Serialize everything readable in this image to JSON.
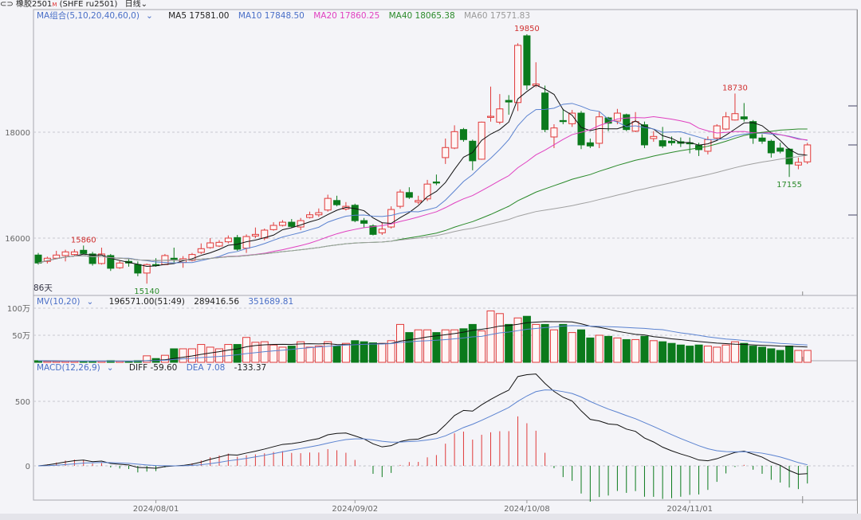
{
  "header": {
    "link_icon": "link-icon",
    "symbol": "橡胶2501",
    "symbol_tag": "M",
    "exchange_code": "(SHFE ru2501)",
    "period": "日线",
    "period_chevron": "chevron-down-icon"
  },
  "ma_legend": {
    "group_label": "MA组合(5,10,20,40,60,0)",
    "ma5": "MA5 17581.00",
    "ma10": "MA10 17848.50",
    "ma20": "MA20 17860.25",
    "ma40": "MA40 18065.38",
    "ma60": "MA60 17571.83"
  },
  "vol_legend": {
    "label": "MV(10,20)",
    "v1": "196571.00(51:49)",
    "v2": "289416.56",
    "v3": "351689.81"
  },
  "macd_legend": {
    "label": "MACD(12,26,9)",
    "diff": "DIFF -59.60",
    "dea": "DEA 7.08",
    "macd": "-133.37"
  },
  "days_label": "86天",
  "colors": {
    "up": "#e03a3a",
    "down": "#0b7a1c",
    "ma5": "#111111",
    "ma10": "#5a82d0",
    "ma20": "#e040c0",
    "ma40": "#2a8a2a",
    "ma60": "#a0a0a0"
  },
  "chart_data": {
    "type": "candlestick",
    "candle_format": [
      "open",
      "high",
      "low",
      "close"
    ],
    "candles": [
      [
        15680,
        15720,
        15500,
        15530
      ],
      [
        15560,
        15650,
        15520,
        15620
      ],
      [
        15620,
        15760,
        15600,
        15680
      ],
      [
        15670,
        15780,
        15560,
        15740
      ],
      [
        15690,
        15790,
        15660,
        15740
      ],
      [
        15770,
        15860,
        15700,
        15710
      ],
      [
        15700,
        15740,
        15480,
        15520
      ],
      [
        15520,
        15820,
        15500,
        15700
      ],
      [
        15670,
        15700,
        15380,
        15430
      ],
      [
        15440,
        15580,
        15420,
        15530
      ],
      [
        15560,
        15600,
        15460,
        15530
      ],
      [
        15500,
        15560,
        15280,
        15340
      ],
      [
        15340,
        15520,
        15140,
        15500
      ],
      [
        15500,
        15620,
        15460,
        15480
      ],
      [
        15500,
        15700,
        15490,
        15670
      ],
      [
        15620,
        15820,
        15540,
        15600
      ],
      [
        15540,
        15660,
        15440,
        15610
      ],
      [
        15580,
        15720,
        15560,
        15690
      ],
      [
        15730,
        15900,
        15700,
        15800
      ],
      [
        15820,
        16000,
        15800,
        15910
      ],
      [
        15850,
        15960,
        15830,
        15920
      ],
      [
        15930,
        16050,
        15900,
        16000
      ],
      [
        16010,
        16060,
        15760,
        15790
      ],
      [
        15810,
        16070,
        15720,
        16030
      ],
      [
        16040,
        16200,
        16000,
        16070
      ],
      [
        16000,
        16180,
        15960,
        16150
      ],
      [
        16160,
        16300,
        16140,
        16240
      ],
      [
        16240,
        16340,
        16220,
        16300
      ],
      [
        16300,
        16360,
        16200,
        16220
      ],
      [
        16210,
        16380,
        16150,
        16330
      ],
      [
        16390,
        16500,
        16370,
        16440
      ],
      [
        16440,
        16560,
        16400,
        16480
      ],
      [
        16530,
        16820,
        16500,
        16750
      ],
      [
        16710,
        16800,
        16600,
        16630
      ],
      [
        16550,
        16680,
        16520,
        16600
      ],
      [
        16620,
        16650,
        16300,
        16330
      ],
      [
        16330,
        16380,
        16200,
        16280
      ],
      [
        16230,
        16260,
        16050,
        16070
      ],
      [
        16100,
        16300,
        16060,
        16170
      ],
      [
        16210,
        16600,
        16180,
        16540
      ],
      [
        16600,
        16920,
        16560,
        16870
      ],
      [
        16860,
        16960,
        16740,
        16770
      ],
      [
        16680,
        16800,
        16640,
        16710
      ],
      [
        16740,
        17100,
        16700,
        17020
      ],
      [
        17060,
        17200,
        17000,
        17040
      ],
      [
        17520,
        17880,
        17400,
        17710
      ],
      [
        17700,
        18130,
        17680,
        18010
      ],
      [
        18050,
        18080,
        17820,
        17860
      ],
      [
        17830,
        17860,
        17280,
        17460
      ],
      [
        17490,
        18200,
        17480,
        18190
      ],
      [
        18280,
        18860,
        18200,
        18300
      ],
      [
        18190,
        18720,
        18150,
        18440
      ],
      [
        18600,
        18700,
        18330,
        18570
      ],
      [
        18560,
        19680,
        18400,
        19640
      ],
      [
        19820,
        19850,
        18800,
        18890
      ],
      [
        18880,
        19320,
        18850,
        18910
      ],
      [
        18740,
        18880,
        18000,
        18050
      ],
      [
        17910,
        18150,
        17700,
        18080
      ],
      [
        18220,
        18440,
        18150,
        18200
      ],
      [
        18160,
        18420,
        18100,
        18360
      ],
      [
        18360,
        18400,
        17680,
        17760
      ],
      [
        17800,
        17880,
        17700,
        17740
      ],
      [
        17790,
        18390,
        17700,
        18290
      ],
      [
        18270,
        18290,
        18020,
        18170
      ],
      [
        18210,
        18440,
        18150,
        18360
      ],
      [
        18330,
        18350,
        18020,
        18050
      ],
      [
        18020,
        18380,
        18000,
        18200
      ],
      [
        18140,
        18200,
        17700,
        17760
      ],
      [
        17880,
        18020,
        17820,
        17920
      ],
      [
        17840,
        18100,
        17700,
        17740
      ],
      [
        17830,
        17920,
        17750,
        17800
      ],
      [
        17820,
        17900,
        17720,
        17790
      ],
      [
        17800,
        17900,
        17600,
        17780
      ],
      [
        17750,
        17800,
        17550,
        17670
      ],
      [
        17640,
        17920,
        17580,
        17860
      ],
      [
        17890,
        18150,
        17850,
        18120
      ],
      [
        18060,
        18380,
        18040,
        18290
      ],
      [
        18230,
        18730,
        18220,
        18350
      ],
      [
        18290,
        18550,
        18200,
        18250
      ],
      [
        18200,
        18230,
        17780,
        17890
      ],
      [
        17890,
        17960,
        17780,
        17830
      ],
      [
        17830,
        17860,
        17520,
        17610
      ],
      [
        17700,
        17800,
        17600,
        17640
      ],
      [
        17680,
        17700,
        17155,
        17400
      ],
      [
        17380,
        17520,
        17300,
        17430
      ],
      [
        17440,
        17800,
        17400,
        17760
      ]
    ],
    "volume_wan": [
      3,
      2,
      2,
      2,
      2,
      2,
      2,
      2,
      3,
      2,
      2,
      3,
      12,
      7,
      13,
      25,
      25,
      25,
      33,
      28,
      25,
      33,
      33,
      46,
      37,
      38,
      32,
      28,
      30,
      38,
      28,
      30,
      38,
      30,
      35,
      40,
      38,
      36,
      35,
      40,
      70,
      55,
      60,
      60,
      55,
      60,
      60,
      62,
      70,
      58,
      95,
      90,
      70,
      82,
      85,
      70,
      70,
      60,
      70,
      55,
      60,
      45,
      50,
      48,
      45,
      42,
      42,
      48,
      40,
      38,
      35,
      32,
      30,
      32,
      30,
      28,
      32,
      38,
      35,
      30,
      28,
      25,
      22,
      30,
      22,
      22
    ],
    "ma_periods": [
      5,
      10,
      20,
      40,
      60
    ],
    "price_axis_ticks": [
      16000,
      18000
    ],
    "volume_axis_ticks": [
      "50万",
      "100万"
    ],
    "volume_axis_values": [
      50,
      100
    ],
    "macd_axis_ticks": [
      0,
      500
    ],
    "macd_params": [
      12,
      26,
      9
    ],
    "x_tick_labels": [
      {
        "index": 14,
        "label": "2024/08/01"
      },
      {
        "index": 36,
        "label": "2024/09/02"
      },
      {
        "index": 55,
        "label": "2024/10/08"
      },
      {
        "index": 73,
        "label": "2024/11/01"
      }
    ],
    "annotations": [
      {
        "index": 6,
        "value": 15860,
        "kind": "high",
        "label": "15860"
      },
      {
        "index": 13,
        "value": 15140,
        "kind": "low",
        "label": "15140"
      },
      {
        "index": 55,
        "value": 19850,
        "kind": "high",
        "label": "19850"
      },
      {
        "index": 78,
        "value": 18730,
        "kind": "high",
        "label": "18730"
      },
      {
        "index": 84,
        "value": 17155,
        "kind": "low",
        "label": "17155"
      }
    ]
  }
}
